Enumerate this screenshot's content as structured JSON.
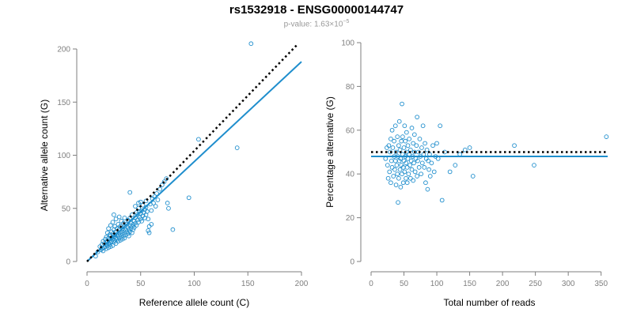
{
  "header": {
    "title": "rs1532918 - ENSG00000144747",
    "pvalue_prefix": "p-value: 1.63×10",
    "pvalue_exponent": "−5"
  },
  "colors": {
    "points": "#1f8ecd",
    "fit_line": "#1f8ecd",
    "reference_line": "#000000",
    "axis": "#7f7f7f"
  },
  "chart_data": [
    {
      "type": "scatter",
      "xlabel": "Reference allele count (C)",
      "ylabel": "Alternative allele count (G)",
      "xlim": [
        0,
        200
      ],
      "ylim": [
        0,
        200
      ],
      "xticks": [
        0,
        50,
        100,
        150,
        200
      ],
      "yticks": [
        0,
        50,
        100,
        150,
        200
      ],
      "fit_line": {
        "x": [
          0,
          200
        ],
        "y": [
          0,
          188
        ]
      },
      "reference_line": {
        "x": [
          0,
          196
        ],
        "y": [
          0,
          204
        ]
      },
      "points": [
        [
          8,
          5
        ],
        [
          10,
          9
        ],
        [
          12,
          14
        ],
        [
          13,
          11
        ],
        [
          14,
          16
        ],
        [
          14,
          12
        ],
        [
          15,
          19
        ],
        [
          15,
          10
        ],
        [
          16,
          13
        ],
        [
          16,
          17
        ],
        [
          17,
          14
        ],
        [
          17,
          21
        ],
        [
          18,
          12
        ],
        [
          18,
          16
        ],
        [
          18,
          23
        ],
        [
          19,
          15
        ],
        [
          19,
          19
        ],
        [
          19,
          27
        ],
        [
          20,
          13
        ],
        [
          20,
          17
        ],
        [
          20,
          22
        ],
        [
          20,
          31
        ],
        [
          21,
          16
        ],
        [
          21,
          20
        ],
        [
          21,
          25
        ],
        [
          22,
          14
        ],
        [
          22,
          18
        ],
        [
          22,
          24
        ],
        [
          22,
          34
        ],
        [
          23,
          19
        ],
        [
          23,
          22
        ],
        [
          23,
          28
        ],
        [
          24,
          15
        ],
        [
          24,
          21
        ],
        [
          24,
          26
        ],
        [
          24,
          37
        ],
        [
          25,
          18
        ],
        [
          25,
          23
        ],
        [
          25,
          30
        ],
        [
          25,
          44
        ],
        [
          26,
          20
        ],
        [
          26,
          25
        ],
        [
          26,
          33
        ],
        [
          27,
          17
        ],
        [
          27,
          22
        ],
        [
          27,
          28
        ],
        [
          27,
          40
        ],
        [
          28,
          21
        ],
        [
          28,
          26
        ],
        [
          28,
          31
        ],
        [
          29,
          19
        ],
        [
          29,
          24
        ],
        [
          29,
          35
        ],
        [
          30,
          22
        ],
        [
          30,
          27
        ],
        [
          30,
          30
        ],
        [
          30,
          42
        ],
        [
          31,
          20
        ],
        [
          31,
          25
        ],
        [
          31,
          33
        ],
        [
          32,
          23
        ],
        [
          32,
          28
        ],
        [
          32,
          38
        ],
        [
          33,
          21
        ],
        [
          33,
          26
        ],
        [
          33,
          31
        ],
        [
          34,
          24
        ],
        [
          34,
          29
        ],
        [
          34,
          36
        ],
        [
          35,
          22
        ],
        [
          35,
          27
        ],
        [
          35,
          33
        ],
        [
          35,
          41
        ],
        [
          36,
          25
        ],
        [
          36,
          30
        ],
        [
          37,
          28
        ],
        [
          37,
          35
        ],
        [
          38,
          26
        ],
        [
          38,
          32
        ],
        [
          38,
          39
        ],
        [
          39,
          30
        ],
        [
          39,
          24
        ],
        [
          40,
          34
        ],
        [
          40,
          28
        ],
        [
          40,
          41
        ],
        [
          41,
          31
        ],
        [
          41,
          36
        ],
        [
          42,
          33
        ],
        [
          42,
          27
        ],
        [
          42,
          44
        ],
        [
          43,
          35
        ],
        [
          43,
          30
        ],
        [
          44,
          38
        ],
        [
          44,
          32
        ],
        [
          45,
          36
        ],
        [
          45,
          41
        ],
        [
          46,
          34
        ],
        [
          46,
          46
        ],
        [
          47,
          39
        ],
        [
          47,
          44
        ],
        [
          48,
          37
        ],
        [
          48,
          50
        ],
        [
          49,
          42
        ],
        [
          49,
          47
        ],
        [
          50,
          40
        ],
        [
          50,
          45
        ],
        [
          51,
          48
        ],
        [
          51,
          38
        ],
        [
          52,
          43
        ],
        [
          52,
          53
        ],
        [
          53,
          46
        ],
        [
          54,
          41
        ],
        [
          54,
          49
        ],
        [
          55,
          44
        ],
        [
          55,
          51
        ],
        [
          56,
          47
        ],
        [
          57,
          29
        ],
        [
          57,
          40
        ],
        [
          58,
          27
        ],
        [
          58,
          33
        ],
        [
          59,
          54
        ],
        [
          60,
          48
        ],
        [
          61,
          59
        ],
        [
          62,
          55
        ],
        [
          63,
          61
        ],
        [
          64,
          52
        ],
        [
          65,
          64
        ],
        [
          66,
          58
        ],
        [
          68,
          68
        ],
        [
          70,
          72
        ],
        [
          72,
          75
        ],
        [
          74,
          78
        ],
        [
          75,
          55
        ],
        [
          76,
          50
        ],
        [
          80,
          30
        ],
        [
          95,
          60
        ],
        [
          104,
          115
        ],
        [
          140,
          107
        ],
        [
          153,
          205
        ],
        [
          40,
          65
        ],
        [
          45,
          52
        ],
        [
          50,
          56
        ],
        [
          55,
          57
        ],
        [
          48,
          55
        ],
        [
          60,
          35
        ]
      ]
    },
    {
      "type": "scatter",
      "xlabel": "Total number of reads",
      "ylabel": "Percentage alternative (G)",
      "xlim": [
        0,
        360
      ],
      "ylim": [
        0,
        100
      ],
      "xticks": [
        0,
        50,
        100,
        150,
        200,
        250,
        300,
        350
      ],
      "yticks": [
        0,
        20,
        40,
        60,
        80,
        100
      ],
      "fit_line": {
        "x": [
          0,
          360
        ],
        "y": [
          48,
          48
        ]
      },
      "reference_line": {
        "x": [
          0,
          360
        ],
        "y": [
          50,
          50
        ]
      },
      "points": [
        [
          22,
          47
        ],
        [
          24,
          52
        ],
        [
          25,
          44
        ],
        [
          26,
          38
        ],
        [
          27,
          53
        ],
        [
          28,
          41
        ],
        [
          29,
          50
        ],
        [
          30,
          56
        ],
        [
          30,
          36
        ],
        [
          31,
          46
        ],
        [
          32,
          60
        ],
        [
          32,
          43
        ],
        [
          33,
          52
        ],
        [
          34,
          39
        ],
        [
          35,
          48
        ],
        [
          35,
          55
        ],
        [
          36,
          42
        ],
        [
          37,
          62
        ],
        [
          37,
          46
        ],
        [
          38,
          35
        ],
        [
          38,
          50
        ],
        [
          39,
          44
        ],
        [
          40,
          57
        ],
        [
          40,
          40
        ],
        [
          41,
          27
        ],
        [
          41,
          48
        ],
        [
          42,
          53
        ],
        [
          42,
          38
        ],
        [
          43,
          46
        ],
        [
          43,
          64
        ],
        [
          44,
          42
        ],
        [
          44,
          51
        ],
        [
          45,
          47
        ],
        [
          45,
          34
        ],
        [
          46,
          55
        ],
        [
          46,
          44
        ],
        [
          47,
          72
        ],
        [
          47,
          40
        ],
        [
          48,
          49
        ],
        [
          48,
          57
        ],
        [
          49,
          43
        ],
        [
          49,
          36
        ],
        [
          50,
          52
        ],
        [
          50,
          46
        ],
        [
          51,
          62
        ],
        [
          51,
          41
        ],
        [
          52,
          48
        ],
        [
          52,
          55
        ],
        [
          53,
          38
        ],
        [
          53,
          45
        ],
        [
          54,
          50
        ],
        [
          54,
          59
        ],
        [
          55,
          43
        ],
        [
          55,
          36
        ],
        [
          56,
          47
        ],
        [
          56,
          53
        ],
        [
          57,
          40
        ],
        [
          58,
          49
        ],
        [
          58,
          56
        ],
        [
          59,
          44
        ],
        [
          60,
          51
        ],
        [
          60,
          38
        ],
        [
          61,
          46
        ],
        [
          62,
          61
        ],
        [
          62,
          42
        ],
        [
          63,
          48
        ],
        [
          64,
          54
        ],
        [
          64,
          37
        ],
        [
          65,
          45
        ],
        [
          66,
          50
        ],
        [
          66,
          58
        ],
        [
          67,
          41
        ],
        [
          68,
          47
        ],
        [
          69,
          53
        ],
        [
          70,
          39
        ],
        [
          70,
          66
        ],
        [
          71,
          46
        ],
        [
          72,
          50
        ],
        [
          73,
          43
        ],
        [
          74,
          56
        ],
        [
          75,
          48
        ],
        [
          76,
          40
        ],
        [
          77,
          52
        ],
        [
          78,
          45
        ],
        [
          79,
          62
        ],
        [
          80,
          49
        ],
        [
          81,
          43
        ],
        [
          82,
          54
        ],
        [
          83,
          36
        ],
        [
          84,
          47
        ],
        [
          85,
          51
        ],
        [
          86,
          33
        ],
        [
          87,
          46
        ],
        [
          88,
          42
        ],
        [
          89,
          49
        ],
        [
          90,
          39
        ],
        [
          92,
          45
        ],
        [
          94,
          53
        ],
        [
          96,
          41
        ],
        [
          98,
          48
        ],
        [
          100,
          54
        ],
        [
          102,
          47
        ],
        [
          105,
          62
        ],
        [
          108,
          28
        ],
        [
          112,
          50
        ],
        [
          120,
          41
        ],
        [
          128,
          44
        ],
        [
          135,
          49
        ],
        [
          143,
          51
        ],
        [
          150,
          52
        ],
        [
          155,
          39
        ],
        [
          218,
          53
        ],
        [
          248,
          44
        ],
        [
          358,
          57
        ]
      ]
    }
  ]
}
